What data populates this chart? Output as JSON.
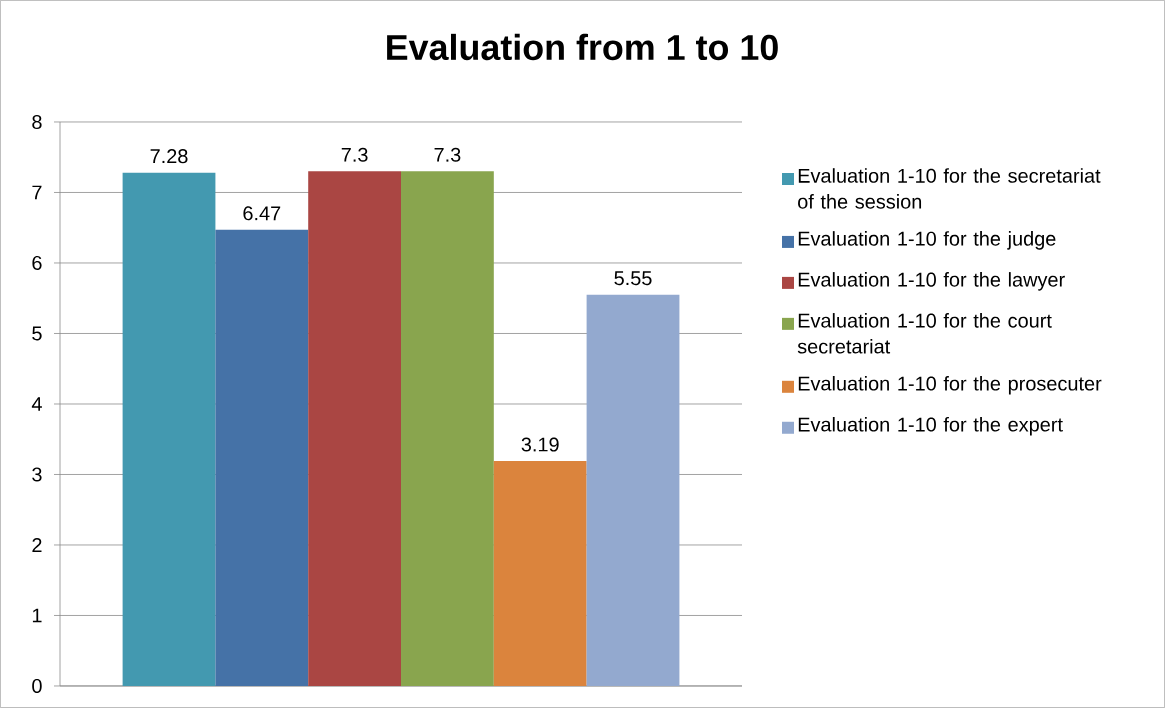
{
  "chart_data": {
    "type": "bar",
    "title": "Evaluation from 1 to 10",
    "categories": [
      null
    ],
    "series": [
      {
        "name": "Evaluation 1-10 for the secretariat of the session",
        "color": "#4399b0",
        "values": [
          7.28
        ]
      },
      {
        "name": "Evaluation 1-10 for the judge",
        "color": "#4572a7",
        "values": [
          6.47
        ]
      },
      {
        "name": "Evaluation 1-10 for the lawyer",
        "color": "#aa4643",
        "values": [
          7.3
        ]
      },
      {
        "name": "Evaluation 1-10 for the court secretariat",
        "color": "#89a54e",
        "values": [
          7.3
        ]
      },
      {
        "name": "Evaluation 1-10 for the prosecuter",
        "color": "#db843d",
        "values": [
          3.19
        ]
      },
      {
        "name": "Evaluation 1-10 for the expert",
        "color": "#93a9cf",
        "values": [
          5.55
        ]
      }
    ],
    "ylim": [
      0,
      8
    ],
    "yticks": [
      0,
      1,
      2,
      3,
      4,
      5,
      6,
      7,
      8
    ],
    "grid": "y",
    "legend": "right",
    "data_labels": true
  }
}
